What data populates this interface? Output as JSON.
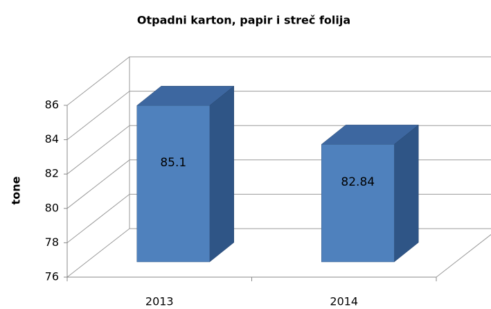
{
  "chart_data": {
    "type": "bar3d",
    "title": "Otpadni karton, papir i streč folija",
    "y_label": "tone",
    "categories": [
      "2013",
      "2014"
    ],
    "values": [
      85.1,
      82.84
    ],
    "color": "#4f81bd",
    "ylim": [
      76,
      86
    ],
    "yticks": [
      76,
      78,
      80,
      82,
      84,
      86
    ],
    "grid": true
  }
}
